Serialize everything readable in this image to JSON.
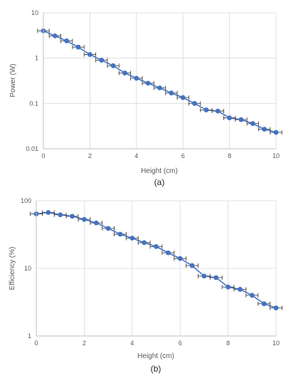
{
  "chart_data": [
    {
      "type": "line",
      "caption": "(a)",
      "xlabel": "Height (cm)",
      "ylabel": "Power (W)",
      "xlim": [
        0,
        10
      ],
      "ylim": [
        0.01,
        10
      ],
      "yscale": "log",
      "grid": true,
      "x_ticks": [
        "0",
        "2",
        "4",
        "6",
        "8",
        "10"
      ],
      "y_ticks": [
        "0.01",
        "0.1",
        "1",
        "10"
      ],
      "series": [
        {
          "x": [
            0,
            0.5,
            1,
            1.5,
            2,
            2.5,
            3,
            3.5,
            4,
            4.5,
            5,
            5.5,
            6,
            6.5,
            7,
            7.5,
            8,
            8.5,
            9,
            9.5,
            10
          ],
          "y": [
            4.0,
            3.1,
            2.4,
            1.75,
            1.2,
            0.9,
            0.68,
            0.47,
            0.36,
            0.28,
            0.22,
            0.17,
            0.135,
            0.1,
            0.072,
            0.068,
            0.048,
            0.044,
            0.036,
            0.027,
            0.023
          ],
          "x_error": 0.25
        }
      ],
      "color": "#4472C4"
    },
    {
      "type": "line",
      "caption": "(b)",
      "xlabel": "Height (cm)",
      "ylabel": "Efficiency (%)",
      "xlim": [
        0,
        10
      ],
      "ylim": [
        1,
        100
      ],
      "yscale": "log",
      "grid": true,
      "x_ticks": [
        "0",
        "2",
        "4",
        "6",
        "8",
        "10"
      ],
      "y_ticks": [
        "1",
        "10",
        "100"
      ],
      "series": [
        {
          "x": [
            0,
            0.5,
            1,
            1.5,
            2,
            2.5,
            3,
            3.5,
            4,
            4.5,
            5,
            5.5,
            6,
            6.5,
            7,
            7.5,
            8,
            8.5,
            9,
            9.5,
            10
          ],
          "y": [
            64,
            67,
            62,
            59,
            53,
            47,
            39,
            32,
            28,
            24,
            21,
            17,
            14,
            11,
            7.7,
            7.3,
            5.3,
            4.9,
            4.0,
            3.0,
            2.6
          ],
          "x_error": 0.25
        }
      ],
      "color": "#4472C4"
    }
  ]
}
